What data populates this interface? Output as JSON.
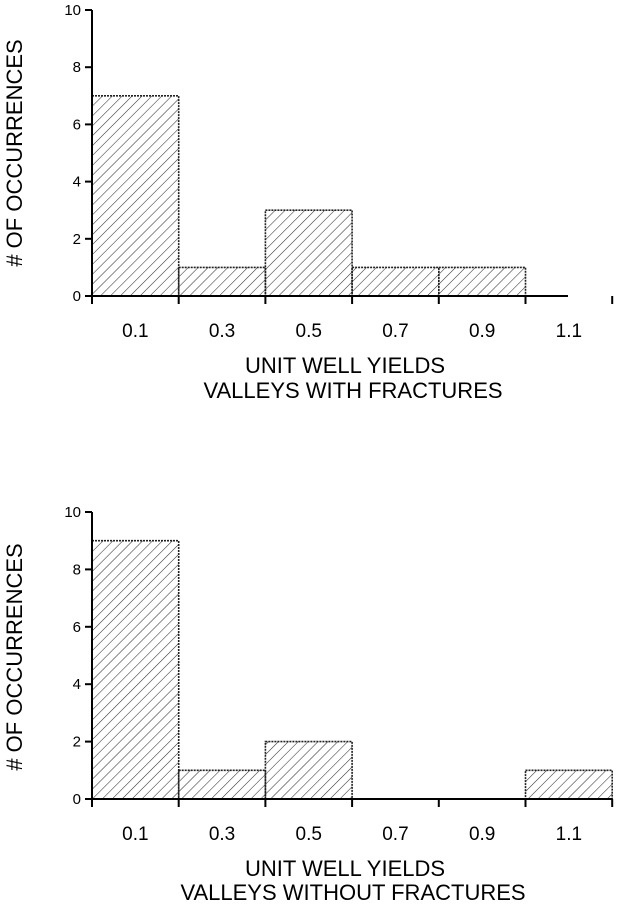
{
  "chart_data": [
    {
      "type": "bar",
      "bin_edges": [
        0,
        0.2,
        0.4,
        0.6,
        0.8,
        1.0,
        1.2
      ],
      "values": [
        7,
        1,
        3,
        1,
        1,
        0
      ],
      "xticks": [
        "0.1",
        "0.3",
        "0.5",
        "0.7",
        "0.9",
        "1.1"
      ],
      "yticks": [
        "0",
        "2",
        "4",
        "6",
        "8",
        "10"
      ],
      "ylim": [
        0,
        10
      ],
      "ylabel": "# OF OCCURRENCES",
      "xlabel_line1": "UNIT WELL YIELDS",
      "xlabel_line2": "VALLEYS WITH FRACTURES"
    },
    {
      "type": "bar",
      "bin_edges": [
        0,
        0.2,
        0.4,
        0.6,
        0.8,
        1.0,
        1.2
      ],
      "values": [
        9,
        1,
        2,
        0,
        0,
        1
      ],
      "xticks": [
        "0.1",
        "0.3",
        "0.5",
        "0.7",
        "0.9",
        "1.1"
      ],
      "yticks": [
        "0",
        "2",
        "4",
        "6",
        "8",
        "10"
      ],
      "ylim": [
        0,
        10
      ],
      "ylabel": "# OF OCCURRENCES",
      "xlabel_line1": "UNIT WELL YIELDS",
      "xlabel_line2": "VALLEYS WITHOUT FRACTURES"
    }
  ]
}
